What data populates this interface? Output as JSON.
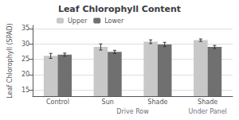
{
  "chart_data": {
    "type": "bar",
    "title": "Leaf Chlorophyll Content",
    "ylabel": "Leaf Chlorophyll (SPAD)",
    "categories": [
      "Control",
      "Sun",
      "Shade",
      "Shade"
    ],
    "series": [
      {
        "name": "Upper",
        "color": "#c8c8c8",
        "values": [
          26.1,
          29.0,
          30.7,
          31.2
        ],
        "errors": [
          0.8,
          1.0,
          0.6,
          0.4
        ]
      },
      {
        "name": "Lower",
        "color": "#707070",
        "values": [
          26.5,
          27.4,
          29.8,
          29.0
        ],
        "errors": [
          0.5,
          0.5,
          0.7,
          0.5
        ]
      }
    ],
    "annotations": [
      {
        "text": "Drive Row",
        "categories": [
          1,
          2
        ]
      },
      {
        "text": "Under Panel",
        "categories": [
          3
        ]
      }
    ],
    "ylim": [
      13,
      36
    ],
    "yticks": [
      15,
      20,
      25,
      30,
      35
    ],
    "grid": true,
    "legend": "upper left"
  }
}
